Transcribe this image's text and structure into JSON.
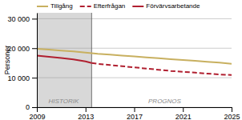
{
  "chart_data": {
    "type": "line",
    "y_label": "Personer",
    "xlim": [
      2009,
      2025
    ],
    "xticks": [
      2009,
      2013,
      2017,
      2021,
      2025
    ],
    "ylim": [
      0,
      32000
    ],
    "yticks": [
      0,
      {
        "value": 10000,
        "label": "10 000"
      },
      {
        "value": 20000,
        "label": "20 000"
      },
      {
        "value": 30000,
        "label": "30 000"
      }
    ],
    "grid": true,
    "legend": "top",
    "shade": {
      "x0": 2009,
      "x1": 2013.5,
      "color": "#d8d8d8"
    },
    "annotations": [
      {
        "text": "HISTORIK",
        "x": 2011.2,
        "y": 1200
      },
      {
        "text": "PROGNOS",
        "x": 2019.5,
        "y": 1200
      }
    ],
    "series": [
      {
        "name": "Tillgång",
        "color": "#c8b060",
        "line_style": "solid",
        "x": [
          2009,
          2010,
          2011,
          2012,
          2013,
          2014,
          2015,
          2016,
          2017,
          2018,
          2019,
          2020,
          2021,
          2022,
          2023,
          2024,
          2025
        ],
        "values": [
          19800,
          19500,
          19200,
          18900,
          18500,
          18100,
          17800,
          17500,
          17200,
          16900,
          16600,
          16300,
          16000,
          15700,
          15400,
          15100,
          14700
        ]
      },
      {
        "name": "Efterfrågan",
        "color": "#b02030",
        "line_style": "dashed",
        "x": [
          2013.5,
          2014,
          2015,
          2016,
          2017,
          2018,
          2019,
          2020,
          2021,
          2022,
          2023,
          2024,
          2025
        ],
        "values": [
          15000,
          14700,
          14300,
          13900,
          13500,
          13100,
          12700,
          12300,
          12000,
          11700,
          11400,
          11100,
          10900
        ]
      },
      {
        "name": "Förvärvsarbetande",
        "color": "#b02030",
        "line_style": "solid",
        "x": [
          2009,
          2010,
          2011,
          2012,
          2013,
          2013.5
        ],
        "values": [
          17500,
          17100,
          16700,
          16200,
          15500,
          15000
        ]
      }
    ]
  }
}
